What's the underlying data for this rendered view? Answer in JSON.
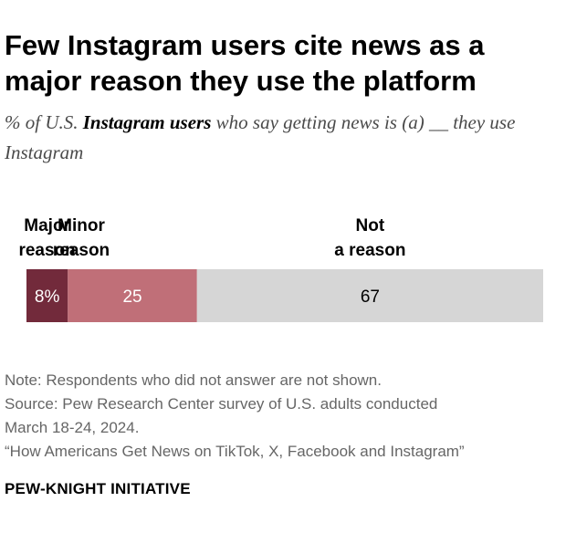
{
  "title": "Few Instagram users cite news as a major reason they use the platform",
  "subtitle": {
    "before": "% of U.S. ",
    "emphasis": "Instagram users",
    "after": " who say getting news is (a) __ they use Instagram"
  },
  "chart_data": {
    "type": "bar",
    "stacked": true,
    "orientation": "horizontal",
    "categories": [
      "Instagram users"
    ],
    "series": [
      {
        "name": "Major reason",
        "values": [
          8
        ],
        "color": "#722a3b",
        "label": "8%",
        "label_color": "#ffffff"
      },
      {
        "name": "Minor reason",
        "values": [
          25
        ],
        "color": "#c06f78",
        "label": "25",
        "label_color": "#ffffff"
      },
      {
        "name": "Not a reason",
        "values": [
          67
        ],
        "color": "#d6d6d6",
        "label": "67",
        "label_color": "#000000"
      }
    ],
    "legend": "above-segments",
    "grid": false
  },
  "notes": {
    "note": "Note: Respondents who did not answer are not shown.",
    "source_line1": "Source: Pew Research Center survey of U.S. adults conducted",
    "source_line2": "March 18-24, 2024.",
    "report": "“How Americans Get News on TikTok, X, Facebook and Instagram”"
  },
  "org": "PEW-KNIGHT INITIATIVE"
}
